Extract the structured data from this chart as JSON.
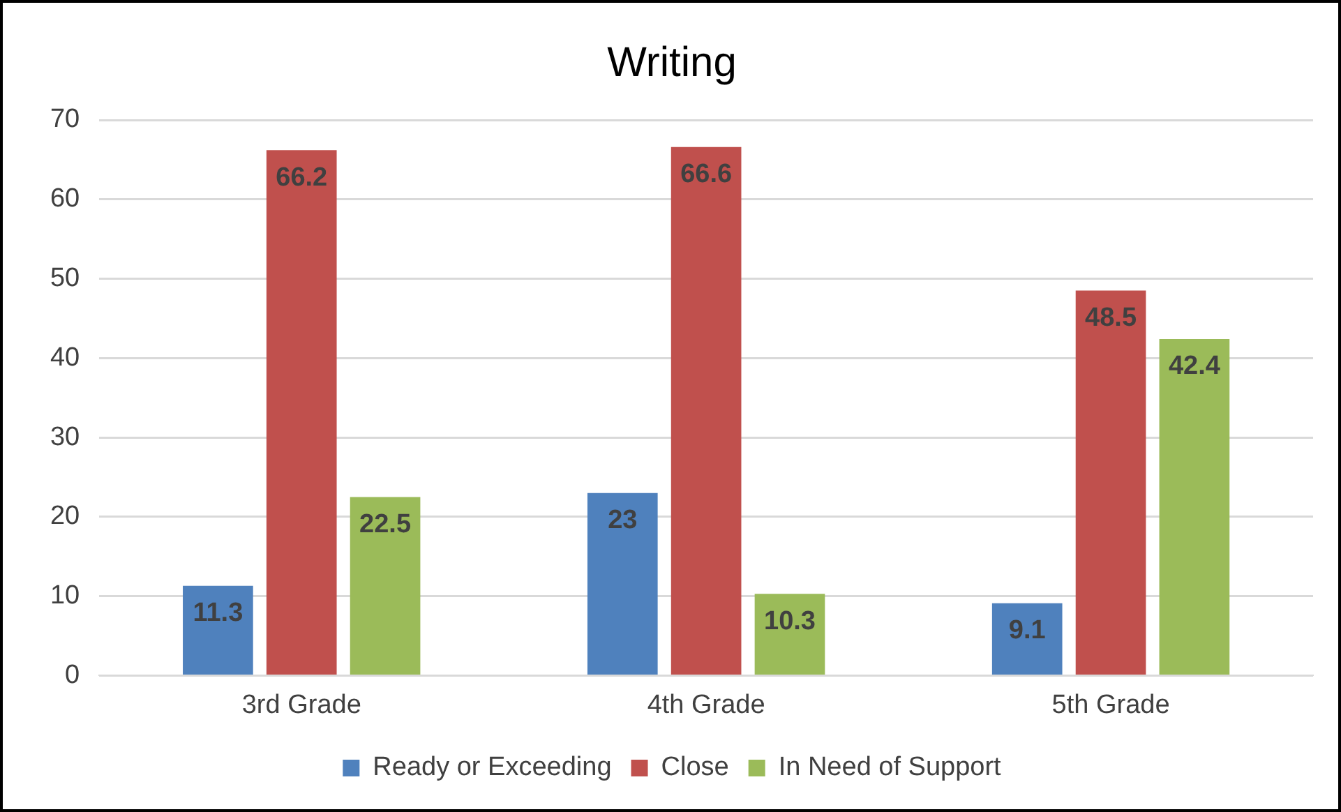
{
  "chart_data": {
    "type": "bar",
    "title": "Writing",
    "categories": [
      "3rd Grade",
      "4th Grade",
      "5th Grade"
    ],
    "series": [
      {
        "name": "Ready or Exceeding",
        "color": "#4f81bd",
        "values": [
          11.3,
          23,
          9.1
        ]
      },
      {
        "name": "Close",
        "color": "#c0504d",
        "values": [
          66.2,
          66.6,
          48.5
        ]
      },
      {
        "name": "In Need of Support",
        "color": "#9bbb59",
        "values": [
          22.5,
          10.3,
          42.4
        ]
      }
    ],
    "ylim": [
      0,
      70
    ],
    "yticks": [
      0,
      10,
      20,
      30,
      40,
      50,
      60,
      70
    ],
    "grid": "y",
    "legend": "bottom",
    "data_labels": true
  }
}
